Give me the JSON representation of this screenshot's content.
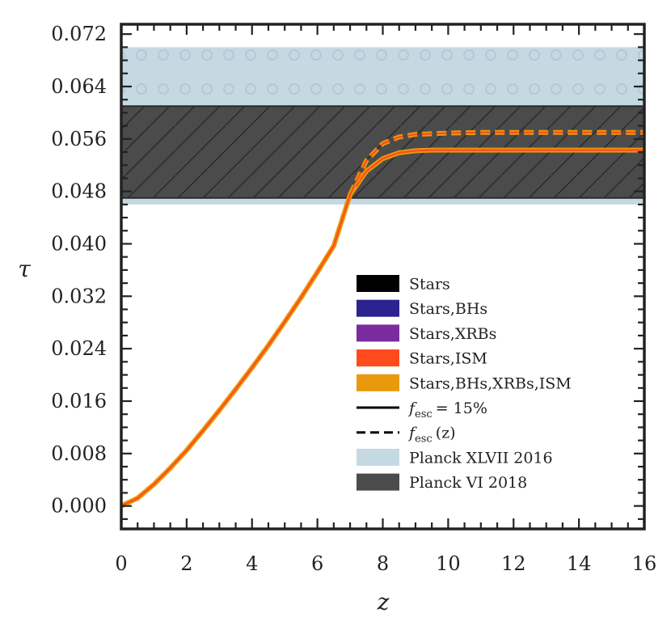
{
  "chart_data": {
    "type": "line",
    "xlabel": "z",
    "ylabel": "τ",
    "xlim": [
      0,
      16
    ],
    "ylim": [
      -0.0035,
      0.0735
    ],
    "x_ticks": [
      "0",
      "2",
      "4",
      "6",
      "8",
      "10",
      "12",
      "14",
      "16"
    ],
    "y_ticks": [
      "0.000",
      "0.008",
      "0.016",
      "0.024",
      "0.032",
      "0.040",
      "0.048",
      "0.056",
      "0.064",
      "0.072"
    ],
    "bands": [
      {
        "name": "Planck XLVII 2016",
        "y_range": [
          0.046,
          0.07
        ],
        "color": "#c5d9e3",
        "hatch": "circles"
      },
      {
        "name": "Planck VI 2018",
        "y_range": [
          0.047,
          0.061
        ],
        "color": "#4b4b4b",
        "hatch": "diagonal"
      }
    ],
    "series": [
      {
        "name": "Stars,BHs,XRBs,ISM",
        "style": "solid",
        "color": "#ff4a1c",
        "x": [
          0,
          0.5,
          1,
          1.5,
          2,
          2.5,
          3,
          3.5,
          4,
          4.5,
          5,
          5.5,
          6,
          6.5,
          7,
          7.5,
          8,
          8.5,
          9,
          9.5,
          10,
          11,
          12,
          13,
          14,
          15,
          16
        ],
        "y": [
          0,
          0.0012,
          0.0033,
          0.0058,
          0.0085,
          0.0115,
          0.0146,
          0.0178,
          0.0211,
          0.0245,
          0.0281,
          0.0318,
          0.0357,
          0.0397,
          0.0475,
          0.0511,
          0.053,
          0.0539,
          0.0542,
          0.0543,
          0.0543,
          0.0543,
          0.0543,
          0.0543,
          0.0543,
          0.0543,
          0.0543
        ]
      },
      {
        "name": "Stars,BHs,XRBs,ISM",
        "style": "dashed",
        "color": "#ff4a1c",
        "x": [
          0,
          0.5,
          1,
          1.5,
          2,
          2.5,
          3,
          3.5,
          4,
          4.5,
          5,
          5.5,
          6,
          6.5,
          7,
          7.5,
          8,
          8.5,
          9,
          9.5,
          10,
          11,
          12,
          13,
          14,
          15,
          16
        ],
        "y": [
          0,
          0.0012,
          0.0033,
          0.0058,
          0.0085,
          0.0115,
          0.0146,
          0.0178,
          0.0211,
          0.0245,
          0.0281,
          0.0318,
          0.0357,
          0.0397,
          0.0475,
          0.0527,
          0.0553,
          0.0563,
          0.0567,
          0.0568,
          0.0569,
          0.057,
          0.057,
          0.057,
          0.057,
          0.057,
          0.057
        ]
      }
    ],
    "legend": {
      "placement": "lower-right",
      "entries": [
        {
          "label": "Stars",
          "kind": "patch",
          "color": "#000000"
        },
        {
          "label": "Stars,BHs",
          "kind": "patch",
          "color": "#2c2290"
        },
        {
          "label": "Stars,XRBs",
          "kind": "patch",
          "color": "#7a2c9e"
        },
        {
          "label": "Stars,ISM",
          "kind": "patch",
          "color": "#ff4a1c"
        },
        {
          "label": "Stars,BHs,XRBs,ISM",
          "kind": "patch",
          "color": "#e89a0c"
        },
        {
          "label": "= 15%",
          "kind": "line-solid",
          "color": "#000000",
          "math": "f",
          "sub": "esc"
        },
        {
          "label": "(z)",
          "kind": "line-dashed",
          "color": "#000000",
          "math": "f",
          "sub": "esc"
        },
        {
          "label": "Planck XLVII 2016",
          "kind": "patch",
          "color": "#c5d9e3"
        },
        {
          "label": "Planck VI 2018",
          "kind": "patch",
          "color": "#4b4b4b"
        }
      ]
    },
    "colors": {
      "orange": "#e89a0c",
      "red": "#ff4a1c",
      "axes": "#222222"
    }
  }
}
